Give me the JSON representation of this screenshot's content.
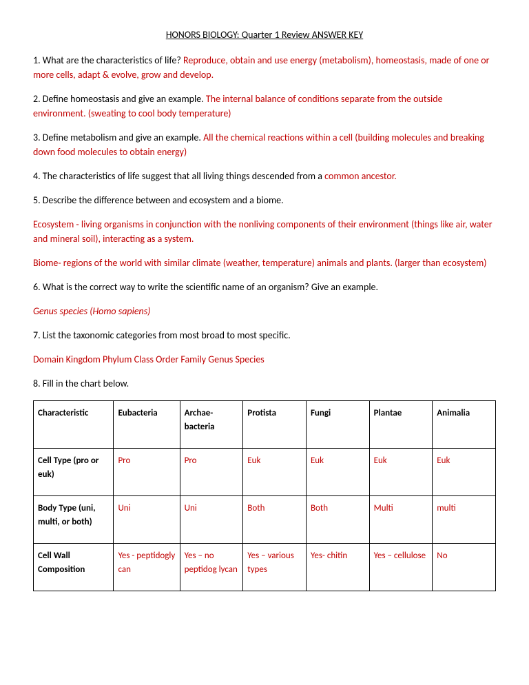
{
  "title": "HONORS BIOLOGY: Quarter 1 Review ANSWER KEY",
  "q1": {
    "q": "1. What are the characteristics of life? ",
    "a": "Reproduce, obtain and use energy (metabolism), homeostasis, made of one or more cells, adapt & evolve, grow and develop."
  },
  "q2": {
    "q": "2. Define homeostasis and give an example. ",
    "a": "The internal balance of conditions separate from the outside environment. (sweating to cool body temperature)"
  },
  "q3": {
    "q": "3. Define metabolism and give an example.  ",
    "a": "All the chemical reactions within a cell (building molecules and breaking down food molecules to obtain energy)"
  },
  "q4": {
    "q": "4. The characteristics of life suggest that all living things descended from a ",
    "a": "common ancestor."
  },
  "q5": {
    "q": "5. Describe the difference between and ecosystem and a biome.",
    "a1": "Ecosystem - living organisms in conjunction with the nonliving components of their environment (things like air, water and mineral soil), interacting as a system.",
    "a2": "Biome- regions of the world with similar climate (weather, temperature) animals and plants. (larger than ecosystem)"
  },
  "q6": {
    "q": "6. What is the correct way to write the scientific name of an organism? Give an example.",
    "a": "Genus species    (Homo sapiens)"
  },
  "q7": {
    "q": "7. List the taxonomic categories from most broad to most specific.",
    "a": "Domain Kingdom Phylum Class Order Family Genus Species"
  },
  "q8": {
    "q": "8. Fill in the chart below."
  },
  "table": {
    "headers": [
      "Characteristic",
      "Eubacteria",
      "Archae-bacteria",
      "Protista",
      "Fungi",
      "Plantae",
      "Animalia"
    ],
    "rows": [
      {
        "label": "Cell Type (pro or euk)",
        "cells": [
          "Pro",
          "Pro",
          "Euk",
          "Euk",
          "Euk",
          "Euk"
        ]
      },
      {
        "label": "Body Type (uni, multi, or both)",
        "cells": [
          "Uni",
          "Uni",
          "Both",
          "Both",
          "Multi",
          "multi"
        ]
      },
      {
        "label": "Cell Wall Composition",
        "cells": [
          "Yes - peptidogly can",
          "Yes – no peptidog lycan",
          "Yes – various types",
          "Yes- chitin",
          "Yes – cellulose",
          "No"
        ]
      }
    ],
    "answer_color": "#c00000",
    "header_weight": "bold",
    "border_color": "#000000"
  }
}
